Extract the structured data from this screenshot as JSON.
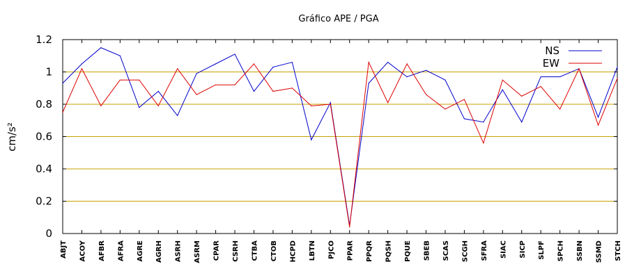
{
  "chart_data": {
    "type": "line",
    "title": "Gráfico  APE / PGA",
    "ylabel": "cm/s²",
    "xlabel": "",
    "ylim": [
      0,
      1.2
    ],
    "yticks": [
      0,
      0.2,
      0.4,
      0.6,
      0.8,
      1,
      1.2
    ],
    "ytick_labels": [
      "0",
      "0.2",
      "0.4",
      "0.6",
      "0.8",
      "1",
      "1.2"
    ],
    "grid": "horizontal",
    "grid_color": "#c8a000",
    "legend_position": "top-right",
    "categories": [
      "ABJT",
      "ACOY",
      "AFBR",
      "AFRA",
      "AGRE",
      "AGRH",
      "ASRH",
      "ASRM",
      "CPAR",
      "CSRH",
      "CTBA",
      "CTOB",
      "HCPD",
      "LBTN",
      "PJCO",
      "PPAR",
      "PPQR",
      "PQSH",
      "PQUE",
      "SBEB",
      "SCAS",
      "SCGH",
      "SFRA",
      "SIAC",
      "SICP",
      "SLPF",
      "SPCH",
      "SSBN",
      "SSMD",
      "STCH"
    ],
    "series": [
      {
        "name": "NS",
        "color": "#0000cc",
        "values": [
          0.93,
          1.05,
          1.15,
          1.1,
          0.78,
          0.88,
          0.73,
          0.99,
          1.05,
          1.11,
          0.88,
          1.03,
          1.06,
          0.58,
          0.81,
          0.05,
          0.93,
          1.06,
          0.97,
          1.01,
          0.95,
          0.71,
          0.69,
          0.89,
          0.69,
          0.97,
          0.97,
          1.02,
          0.72,
          1.03
        ]
      },
      {
        "name": "EW",
        "color": "#dd0000",
        "values": [
          0.75,
          1.02,
          0.79,
          0.95,
          0.95,
          0.79,
          1.02,
          0.86,
          0.92,
          0.92,
          1.05,
          0.88,
          0.9,
          0.79,
          0.8,
          0.04,
          1.06,
          0.81,
          1.05,
          0.86,
          0.77,
          0.83,
          0.56,
          0.95,
          0.85,
          0.91,
          0.77,
          1.02,
          0.67,
          0.96
        ]
      }
    ]
  }
}
